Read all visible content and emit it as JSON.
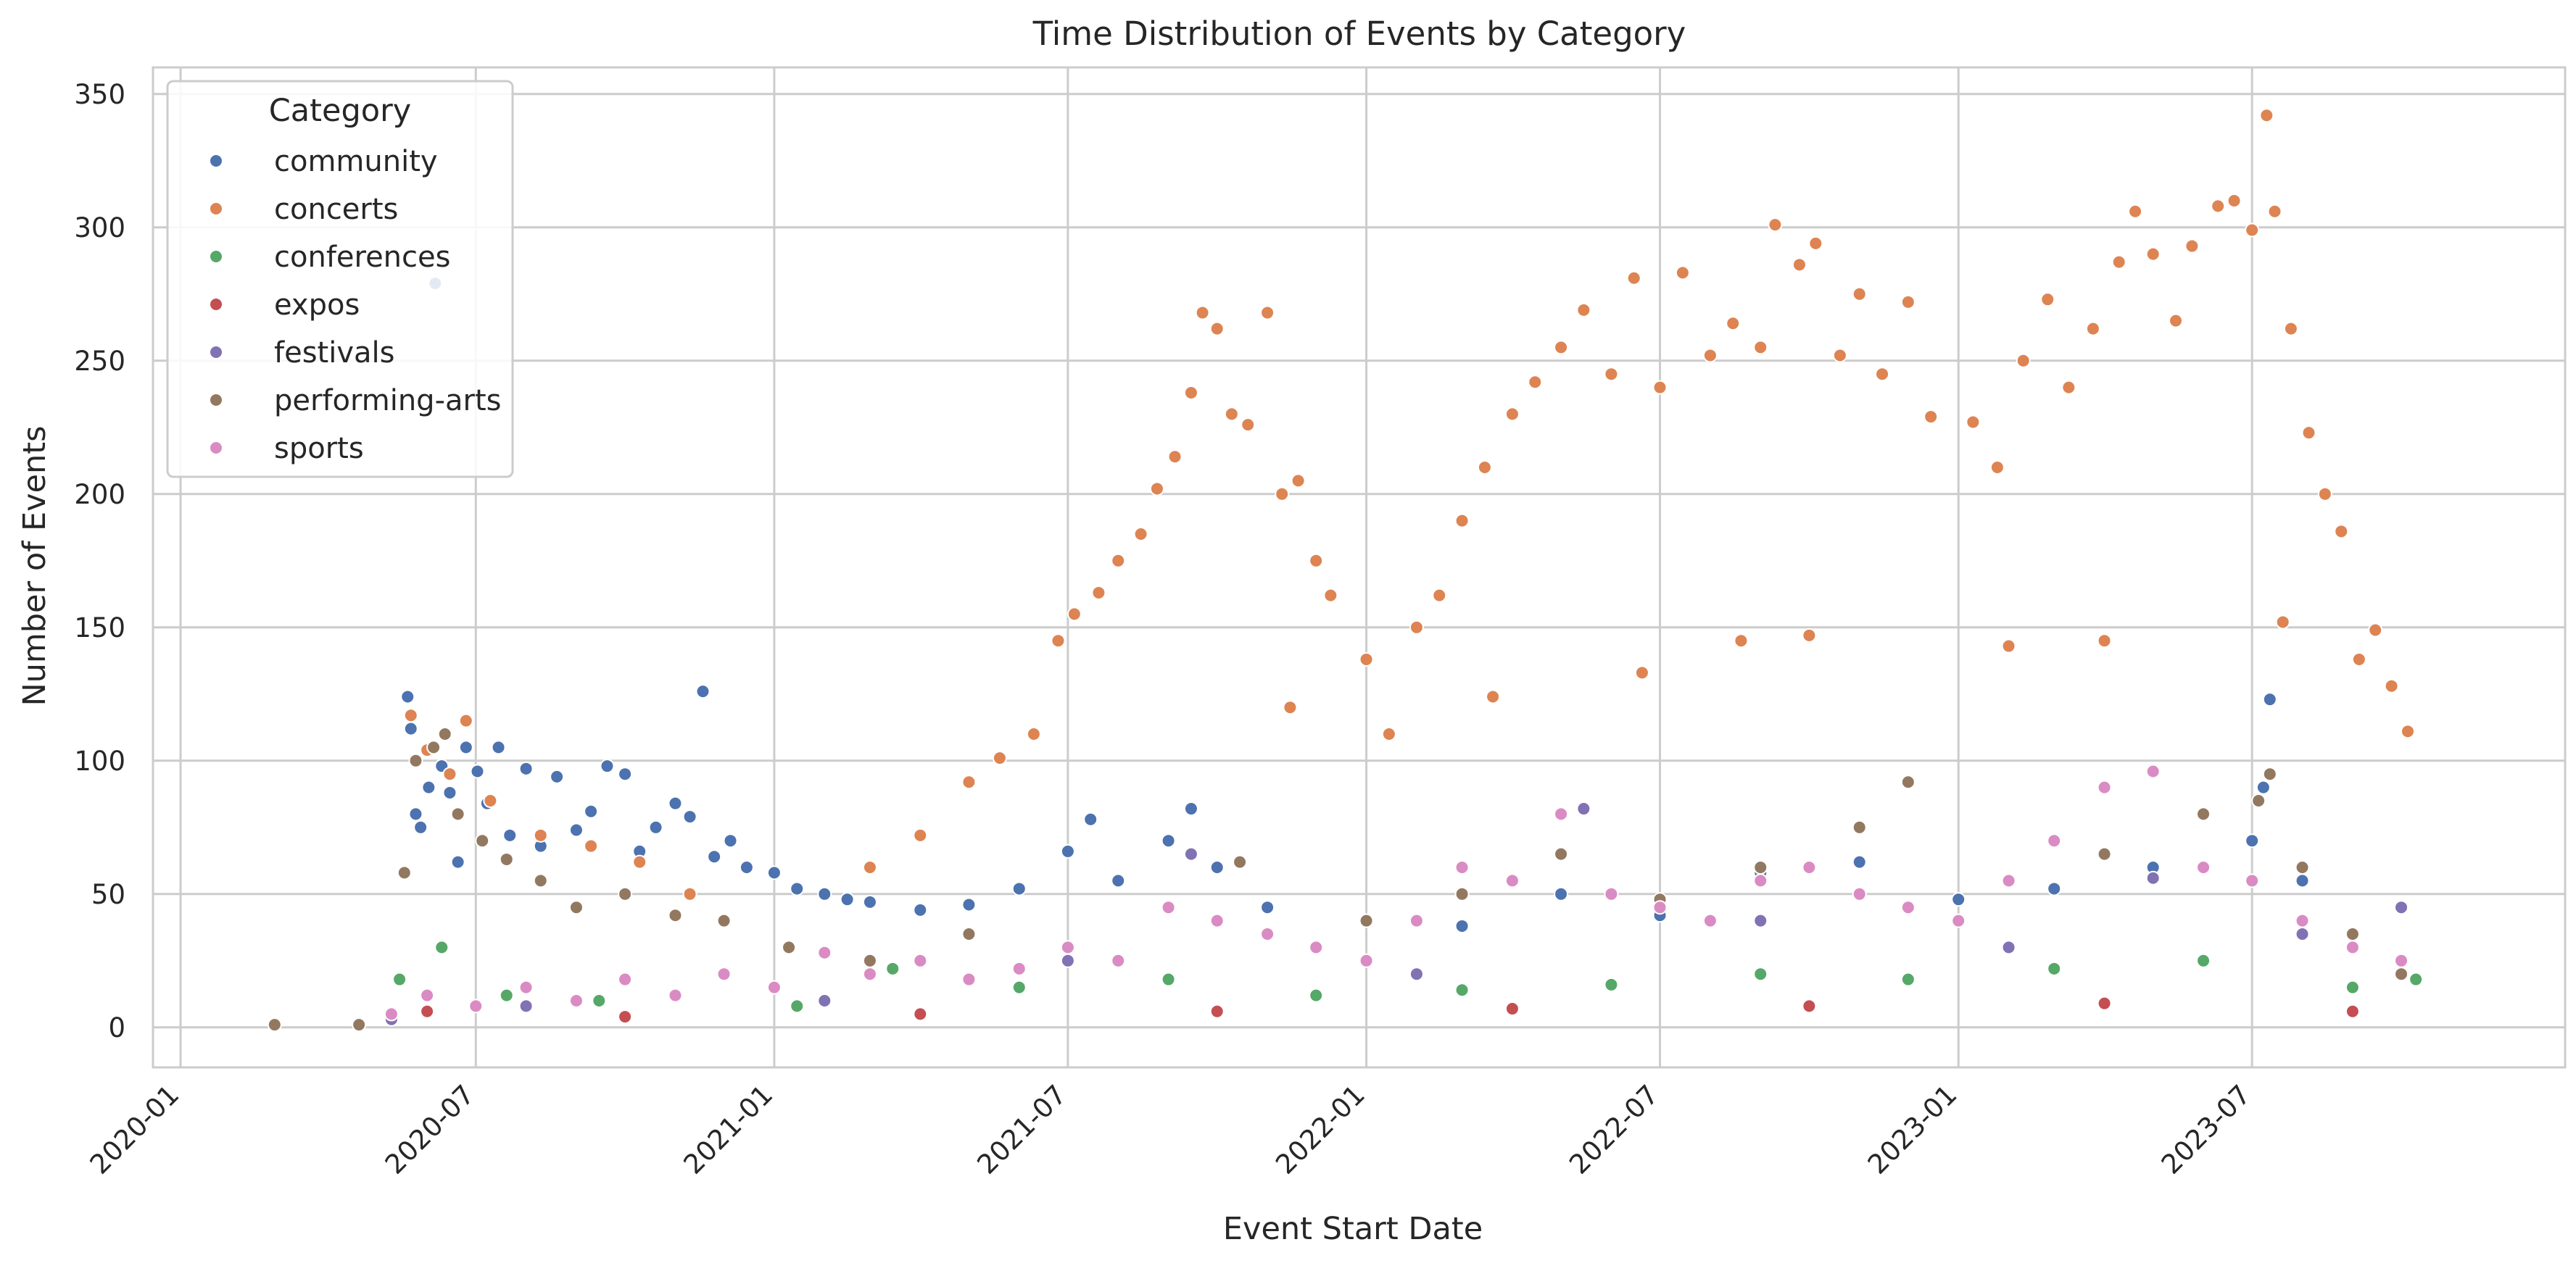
{
  "chart_data": {
    "type": "scatter",
    "title": "Time Distribution of Events by Category",
    "xlabel": "Event Start Date",
    "ylabel": "Number of Events",
    "x_is_date": true,
    "xlim": [
      "2019-12-15",
      "2024-01-10"
    ],
    "ylim": [
      -15,
      360
    ],
    "x_ticks": [
      "2020-01",
      "2020-07",
      "2021-01",
      "2021-07",
      "2022-01",
      "2022-07",
      "2023-01",
      "2023-07"
    ],
    "y_ticks": [
      0,
      50,
      100,
      150,
      200,
      250,
      300,
      350
    ],
    "grid": true,
    "legend": {
      "title": "Category",
      "placement": "top-left"
    },
    "marker": "circle",
    "series": [
      {
        "name": "community",
        "color": "#4c72b0",
        "points": [
          [
            "2020-05-20",
            124
          ],
          [
            "2020-05-22",
            112
          ],
          [
            "2020-05-25",
            80
          ],
          [
            "2020-05-28",
            75
          ],
          [
            "2020-06-02",
            90
          ],
          [
            "2020-06-06",
            279
          ],
          [
            "2020-06-10",
            98
          ],
          [
            "2020-06-15",
            88
          ],
          [
            "2020-06-20",
            62
          ],
          [
            "2020-06-25",
            105
          ],
          [
            "2020-07-02",
            96
          ],
          [
            "2020-07-08",
            84
          ],
          [
            "2020-07-15",
            105
          ],
          [
            "2020-07-22",
            72
          ],
          [
            "2020-08-01",
            97
          ],
          [
            "2020-08-10",
            68
          ],
          [
            "2020-08-20",
            94
          ],
          [
            "2020-09-01",
            74
          ],
          [
            "2020-09-10",
            81
          ],
          [
            "2020-09-20",
            98
          ],
          [
            "2020-10-01",
            95
          ],
          [
            "2020-10-10",
            66
          ],
          [
            "2020-10-20",
            75
          ],
          [
            "2020-11-01",
            84
          ],
          [
            "2020-11-10",
            79
          ],
          [
            "2020-11-18",
            126
          ],
          [
            "2020-11-25",
            64
          ],
          [
            "2020-12-05",
            70
          ],
          [
            "2020-12-15",
            60
          ],
          [
            "2021-01-01",
            58
          ],
          [
            "2021-01-15",
            52
          ],
          [
            "2021-02-01",
            50
          ],
          [
            "2021-02-15",
            48
          ],
          [
            "2021-03-01",
            47
          ],
          [
            "2021-04-01",
            44
          ],
          [
            "2021-05-01",
            46
          ],
          [
            "2021-06-01",
            52
          ],
          [
            "2021-07-01",
            66
          ],
          [
            "2021-07-15",
            78
          ],
          [
            "2021-08-01",
            55
          ],
          [
            "2021-09-01",
            70
          ],
          [
            "2021-09-15",
            82
          ],
          [
            "2021-10-01",
            60
          ],
          [
            "2021-11-01",
            45
          ],
          [
            "2022-01-01",
            40
          ],
          [
            "2022-03-01",
            38
          ],
          [
            "2022-05-01",
            50
          ],
          [
            "2022-07-01",
            42
          ],
          [
            "2022-09-01",
            58
          ],
          [
            "2022-11-01",
            62
          ],
          [
            "2023-01-01",
            48
          ],
          [
            "2023-03-01",
            52
          ],
          [
            "2023-05-01",
            60
          ],
          [
            "2023-07-01",
            70
          ],
          [
            "2023-07-08",
            90
          ],
          [
            "2023-07-12",
            123
          ],
          [
            "2023-08-01",
            55
          ],
          [
            "2023-09-01",
            30
          ],
          [
            "2023-10-01",
            20
          ]
        ]
      },
      {
        "name": "concerts",
        "color": "#dd8452",
        "points": [
          [
            "2020-05-22",
            117
          ],
          [
            "2020-06-01",
            104
          ],
          [
            "2020-06-15",
            95
          ],
          [
            "2020-06-25",
            115
          ],
          [
            "2020-07-10",
            85
          ],
          [
            "2020-08-10",
            72
          ],
          [
            "2020-09-10",
            68
          ],
          [
            "2020-10-10",
            62
          ],
          [
            "2020-11-10",
            50
          ],
          [
            "2021-03-01",
            60
          ],
          [
            "2021-04-01",
            72
          ],
          [
            "2021-05-01",
            92
          ],
          [
            "2021-05-20",
            101
          ],
          [
            "2021-06-10",
            110
          ],
          [
            "2021-06-25",
            145
          ],
          [
            "2021-07-05",
            155
          ],
          [
            "2021-07-20",
            163
          ],
          [
            "2021-08-01",
            175
          ],
          [
            "2021-08-15",
            185
          ],
          [
            "2021-08-25",
            202
          ],
          [
            "2021-09-05",
            214
          ],
          [
            "2021-09-15",
            238
          ],
          [
            "2021-09-22",
            268
          ],
          [
            "2021-10-01",
            262
          ],
          [
            "2021-10-10",
            230
          ],
          [
            "2021-10-20",
            226
          ],
          [
            "2021-11-01",
            268
          ],
          [
            "2021-11-10",
            200
          ],
          [
            "2021-11-20",
            205
          ],
          [
            "2021-12-01",
            175
          ],
          [
            "2021-12-10",
            162
          ],
          [
            "2022-01-01",
            138
          ],
          [
            "2022-01-15",
            110
          ],
          [
            "2022-02-01",
            150
          ],
          [
            "2022-02-15",
            162
          ],
          [
            "2022-03-01",
            190
          ],
          [
            "2022-03-15",
            210
          ],
          [
            "2022-04-01",
            230
          ],
          [
            "2022-04-15",
            242
          ],
          [
            "2022-05-01",
            255
          ],
          [
            "2022-05-15",
            269
          ],
          [
            "2022-06-01",
            245
          ],
          [
            "2022-06-15",
            281
          ],
          [
            "2022-07-01",
            240
          ],
          [
            "2022-07-15",
            283
          ],
          [
            "2022-08-01",
            252
          ],
          [
            "2022-08-15",
            264
          ],
          [
            "2022-09-01",
            255
          ],
          [
            "2022-09-10",
            301
          ],
          [
            "2022-09-25",
            286
          ],
          [
            "2022-10-05",
            294
          ],
          [
            "2022-10-20",
            252
          ],
          [
            "2022-11-01",
            275
          ],
          [
            "2022-11-15",
            245
          ],
          [
            "2022-12-01",
            272
          ],
          [
            "2022-12-15",
            229
          ],
          [
            "2023-01-10",
            227
          ],
          [
            "2023-01-25",
            210
          ],
          [
            "2023-02-10",
            250
          ],
          [
            "2023-02-25",
            273
          ],
          [
            "2023-03-10",
            240
          ],
          [
            "2023-03-25",
            262
          ],
          [
            "2023-04-10",
            287
          ],
          [
            "2023-04-20",
            306
          ],
          [
            "2023-05-01",
            290
          ],
          [
            "2023-05-15",
            265
          ],
          [
            "2023-05-25",
            293
          ],
          [
            "2023-06-10",
            308
          ],
          [
            "2023-06-20",
            310
          ],
          [
            "2023-07-01",
            299
          ],
          [
            "2023-07-10",
            342
          ],
          [
            "2023-07-15",
            306
          ],
          [
            "2023-07-25",
            262
          ],
          [
            "2023-08-05",
            223
          ],
          [
            "2023-08-15",
            200
          ],
          [
            "2023-08-25",
            186
          ],
          [
            "2023-09-05",
            138
          ],
          [
            "2023-09-15",
            149
          ],
          [
            "2023-09-25",
            128
          ],
          [
            "2023-10-05",
            111
          ],
          [
            "2022-08-20",
            145
          ],
          [
            "2022-10-01",
            147
          ],
          [
            "2023-04-01",
            145
          ],
          [
            "2023-07-20",
            152
          ],
          [
            "2021-11-15",
            120
          ],
          [
            "2022-03-20",
            124
          ],
          [
            "2022-06-20",
            133
          ],
          [
            "2023-02-01",
            143
          ]
        ]
      },
      {
        "name": "conferences",
        "color": "#55a868",
        "points": [
          [
            "2020-05-15",
            18
          ],
          [
            "2020-06-10",
            30
          ],
          [
            "2020-07-20",
            12
          ],
          [
            "2020-09-15",
            10
          ],
          [
            "2021-01-15",
            8
          ],
          [
            "2021-03-15",
            22
          ],
          [
            "2021-06-01",
            15
          ],
          [
            "2021-09-01",
            18
          ],
          [
            "2021-12-01",
            12
          ],
          [
            "2022-03-01",
            14
          ],
          [
            "2022-06-01",
            16
          ],
          [
            "2022-09-01",
            20
          ],
          [
            "2022-12-01",
            18
          ],
          [
            "2023-03-01",
            22
          ],
          [
            "2023-06-01",
            25
          ],
          [
            "2023-09-01",
            15
          ],
          [
            "2023-10-10",
            18
          ]
        ]
      },
      {
        "name": "expos",
        "color": "#c44e52",
        "points": [
          [
            "2020-06-01",
            6
          ],
          [
            "2020-10-01",
            4
          ],
          [
            "2021-04-01",
            5
          ],
          [
            "2021-10-01",
            6
          ],
          [
            "2022-04-01",
            7
          ],
          [
            "2022-10-01",
            8
          ],
          [
            "2023-04-01",
            9
          ],
          [
            "2023-09-01",
            6
          ]
        ]
      },
      {
        "name": "festivals",
        "color": "#8172b3",
        "points": [
          [
            "2020-05-10",
            3
          ],
          [
            "2020-08-01",
            8
          ],
          [
            "2021-02-01",
            10
          ],
          [
            "2021-07-01",
            25
          ],
          [
            "2021-09-15",
            65
          ],
          [
            "2022-02-01",
            20
          ],
          [
            "2022-05-15",
            82
          ],
          [
            "2022-09-01",
            40
          ],
          [
            "2023-02-01",
            30
          ],
          [
            "2023-05-01",
            56
          ],
          [
            "2023-08-01",
            35
          ],
          [
            "2023-10-01",
            45
          ]
        ]
      },
      {
        "name": "performing-arts",
        "color": "#937860",
        "points": [
          [
            "2020-02-28",
            1
          ],
          [
            "2020-04-20",
            1
          ],
          [
            "2020-05-18",
            58
          ],
          [
            "2020-05-25",
            100
          ],
          [
            "2020-06-05",
            105
          ],
          [
            "2020-06-12",
            110
          ],
          [
            "2020-06-20",
            80
          ],
          [
            "2020-07-05",
            70
          ],
          [
            "2020-07-20",
            63
          ],
          [
            "2020-08-10",
            55
          ],
          [
            "2020-09-01",
            45
          ],
          [
            "2020-10-01",
            50
          ],
          [
            "2020-11-01",
            42
          ],
          [
            "2020-12-01",
            40
          ],
          [
            "2021-01-10",
            30
          ],
          [
            "2021-03-01",
            25
          ],
          [
            "2021-05-01",
            35
          ],
          [
            "2021-07-01",
            30
          ],
          [
            "2021-09-01",
            45
          ],
          [
            "2021-10-15",
            62
          ],
          [
            "2022-01-01",
            40
          ],
          [
            "2022-03-01",
            50
          ],
          [
            "2022-05-01",
            65
          ],
          [
            "2022-07-01",
            48
          ],
          [
            "2022-09-01",
            60
          ],
          [
            "2022-11-01",
            75
          ],
          [
            "2022-12-01",
            92
          ],
          [
            "2023-02-01",
            55
          ],
          [
            "2023-04-01",
            65
          ],
          [
            "2023-06-01",
            80
          ],
          [
            "2023-07-05",
            85
          ],
          [
            "2023-07-12",
            95
          ],
          [
            "2023-08-01",
            60
          ],
          [
            "2023-09-01",
            35
          ],
          [
            "2023-10-01",
            20
          ]
        ]
      },
      {
        "name": "sports",
        "color": "#da8bc3",
        "points": [
          [
            "2020-05-10",
            5
          ],
          [
            "2020-06-01",
            12
          ],
          [
            "2020-07-01",
            8
          ],
          [
            "2020-08-01",
            15
          ],
          [
            "2020-09-01",
            10
          ],
          [
            "2020-10-01",
            18
          ],
          [
            "2020-11-01",
            12
          ],
          [
            "2020-12-01",
            20
          ],
          [
            "2021-01-01",
            15
          ],
          [
            "2021-02-01",
            28
          ],
          [
            "2021-03-01",
            20
          ],
          [
            "2021-04-01",
            25
          ],
          [
            "2021-05-01",
            18
          ],
          [
            "2021-06-01",
            22
          ],
          [
            "2021-07-01",
            30
          ],
          [
            "2021-08-01",
            25
          ],
          [
            "2021-09-01",
            45
          ],
          [
            "2021-10-01",
            40
          ],
          [
            "2021-11-01",
            35
          ],
          [
            "2021-12-01",
            30
          ],
          [
            "2022-01-01",
            25
          ],
          [
            "2022-02-01",
            40
          ],
          [
            "2022-03-01",
            60
          ],
          [
            "2022-04-01",
            55
          ],
          [
            "2022-05-01",
            80
          ],
          [
            "2022-06-01",
            50
          ],
          [
            "2022-07-01",
            45
          ],
          [
            "2022-08-01",
            40
          ],
          [
            "2022-09-01",
            55
          ],
          [
            "2022-10-01",
            60
          ],
          [
            "2022-11-01",
            50
          ],
          [
            "2022-12-01",
            45
          ],
          [
            "2023-01-01",
            40
          ],
          [
            "2023-02-01",
            55
          ],
          [
            "2023-03-01",
            70
          ],
          [
            "2023-04-01",
            90
          ],
          [
            "2023-05-01",
            96
          ],
          [
            "2023-06-01",
            60
          ],
          [
            "2023-07-01",
            55
          ],
          [
            "2023-08-01",
            40
          ],
          [
            "2023-09-01",
            30
          ],
          [
            "2023-10-01",
            25
          ]
        ]
      }
    ]
  }
}
